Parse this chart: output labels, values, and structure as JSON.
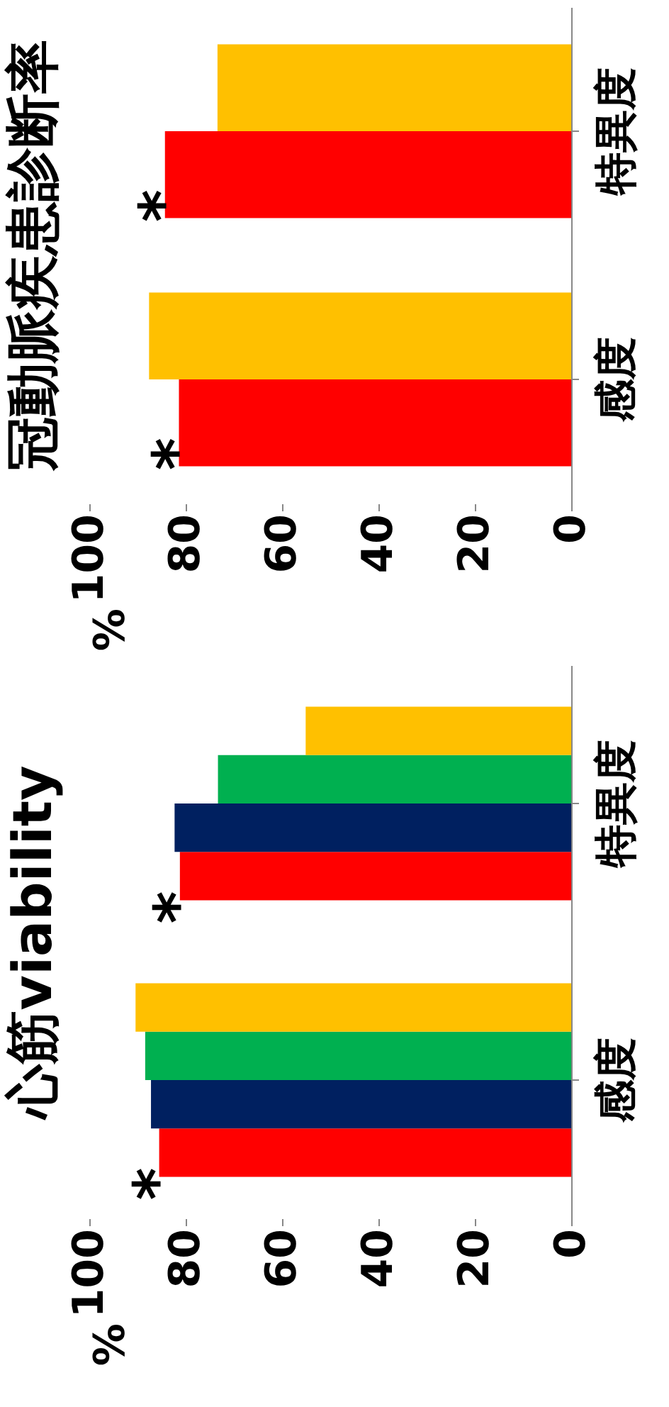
{
  "chart_data": [
    {
      "type": "bar",
      "orientation": "horizontal",
      "title": "冠動脈疾患診断率",
      "ylabel": "%",
      "categories": [
        "特異度",
        "感度"
      ],
      "xlim": [
        100,
        0
      ],
      "xticks": [
        100,
        80,
        60,
        40,
        20,
        0
      ],
      "grid": false,
      "legend": false,
      "series": [
        {
          "color": "#ff0000",
          "values": [
            84.3,
            81.4
          ]
        },
        {
          "color": "#ffc000",
          "values": [
            73.4,
            87.6
          ]
        }
      ],
      "annotations": [
        "*",
        "*"
      ]
    },
    {
      "type": "bar",
      "orientation": "horizontal",
      "title": "心筋viability",
      "ylabel": "%",
      "categories": [
        "特異度",
        "感度"
      ],
      "xlim": [
        100,
        0
      ],
      "xticks": [
        100,
        80,
        60,
        40,
        20,
        0
      ],
      "grid": false,
      "legend": false,
      "series": [
        {
          "color": "#ff0000",
          "values": [
            81.2,
            85.5
          ]
        },
        {
          "color": "#002060",
          "values": [
            82.3,
            87.2
          ]
        },
        {
          "color": "#00b050",
          "values": [
            73.3,
            88.4
          ]
        },
        {
          "color": "#ffc000",
          "values": [
            55.1,
            90.4
          ]
        }
      ],
      "annotations": [
        "*",
        "*"
      ]
    }
  ]
}
